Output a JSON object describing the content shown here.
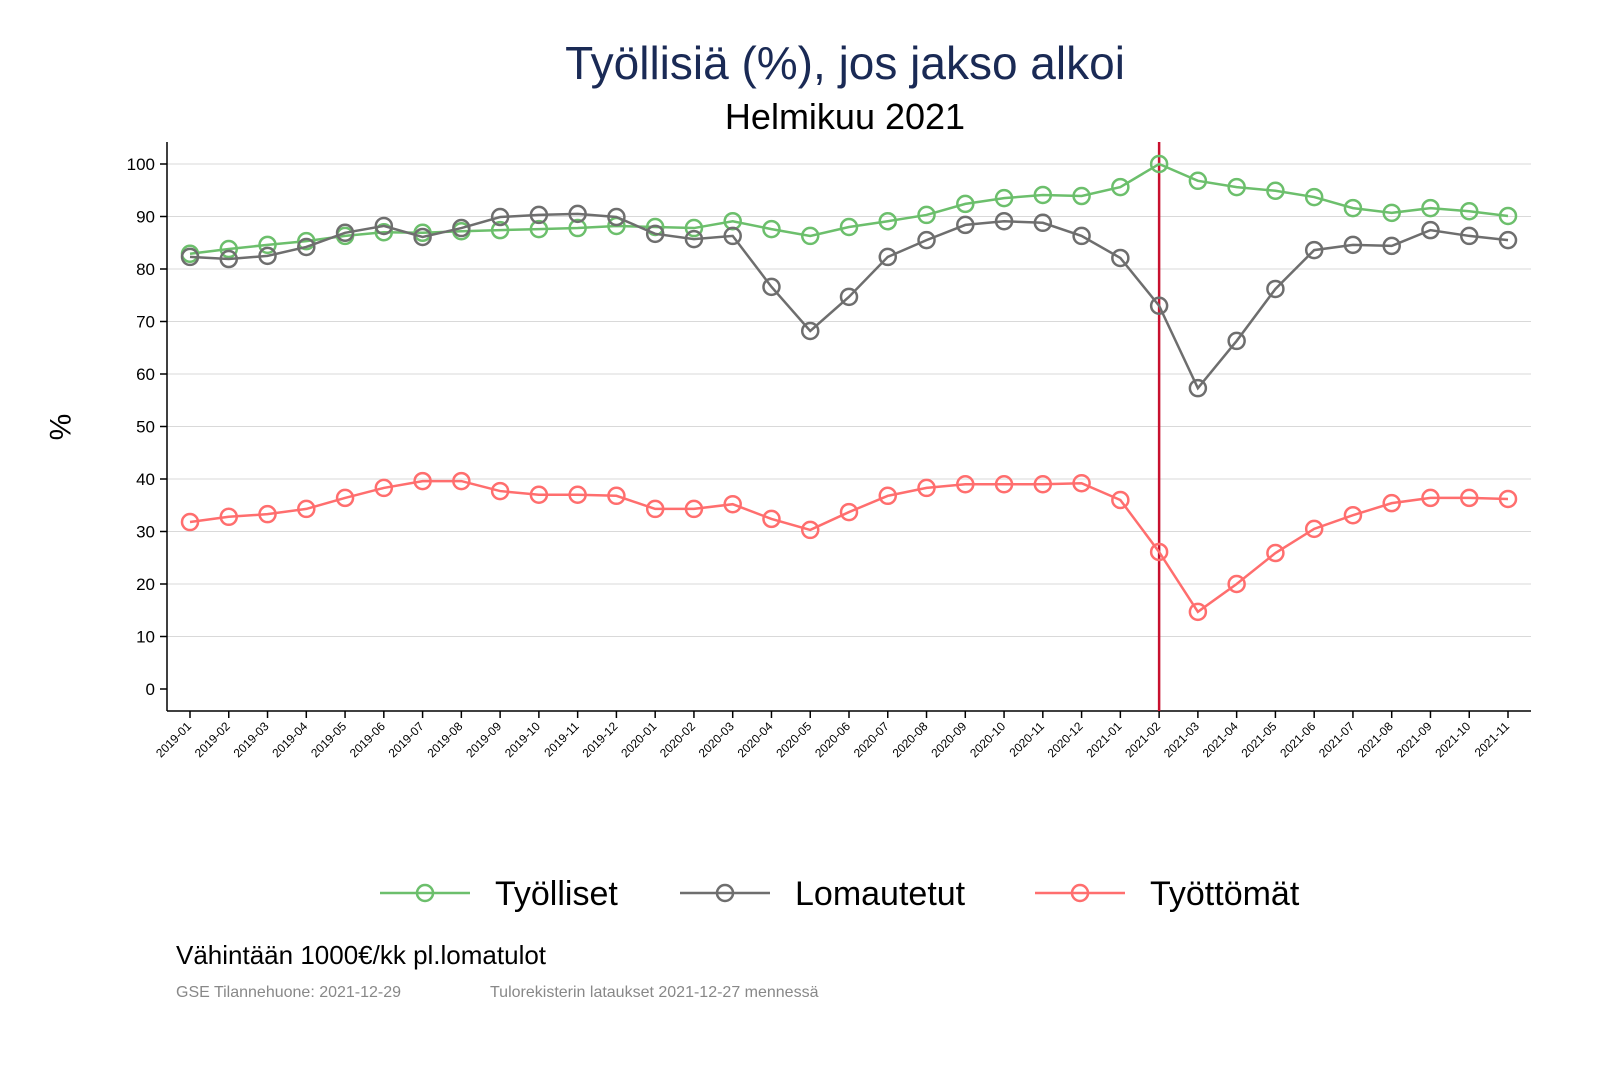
{
  "chart_data": {
    "type": "line",
    "title": "Työllisiä (%), jos jakso alkoi",
    "subtitle": "Helmikuu 2021",
    "ylabel": "%",
    "xlabel": "",
    "ylim": [
      -4,
      104
    ],
    "yticks": [
      0,
      10,
      20,
      30,
      40,
      50,
      60,
      70,
      80,
      90,
      100
    ],
    "grid": true,
    "legend_placement": "bottom",
    "vline": {
      "x": "2021-02",
      "color": "#c8102e"
    },
    "x": [
      "2019-01",
      "2019-02",
      "2019-03",
      "2019-04",
      "2019-05",
      "2019-06",
      "2019-07",
      "2019-08",
      "2019-09",
      "2019-10",
      "2019-11",
      "2019-12",
      "2020-01",
      "2020-02",
      "2020-03",
      "2020-04",
      "2020-05",
      "2020-06",
      "2020-07",
      "2020-08",
      "2020-09",
      "2020-10",
      "2020-11",
      "2020-12",
      "2021-01",
      "2021-02",
      "2021-03",
      "2021-04",
      "2021-05",
      "2021-06",
      "2021-07",
      "2021-08",
      "2021-09",
      "2021-10",
      "2021-11"
    ],
    "series": [
      {
        "name": "Työlliset",
        "color": "#6cbf6c",
        "values": [
          82.9,
          83.8,
          84.6,
          85.3,
          86.3,
          87.0,
          86.9,
          87.2,
          87.4,
          87.6,
          87.8,
          88.2,
          88.0,
          87.8,
          89.1,
          87.6,
          86.3,
          88.0,
          89.1,
          90.3,
          92.4,
          93.5,
          94.1,
          93.9,
          95.6,
          100.0,
          96.8,
          95.6,
          94.9,
          93.7,
          91.6,
          90.7,
          91.6,
          91.0,
          90.1
        ]
      },
      {
        "name": "Lomautetut",
        "color": "#6e6e6e",
        "values": [
          82.3,
          81.9,
          82.5,
          84.2,
          86.9,
          88.2,
          86.1,
          87.8,
          89.9,
          90.3,
          90.5,
          89.9,
          86.7,
          85.7,
          86.3,
          76.6,
          68.2,
          74.7,
          82.3,
          85.5,
          88.4,
          89.1,
          88.8,
          86.3,
          82.1,
          73.0,
          57.3,
          66.3,
          76.2,
          83.6,
          84.6,
          84.4,
          87.4,
          86.3,
          85.5
        ]
      },
      {
        "name": "Työttömät",
        "color": "#ff6e6e",
        "values": [
          31.8,
          32.8,
          33.3,
          34.3,
          36.4,
          38.3,
          39.6,
          39.6,
          37.7,
          37.0,
          37.0,
          36.8,
          34.3,
          34.3,
          35.2,
          32.4,
          30.3,
          33.7,
          36.8,
          38.3,
          39.0,
          39.0,
          39.0,
          39.2,
          36.0,
          26.1,
          14.7,
          20.0,
          25.9,
          30.5,
          33.1,
          35.4,
          36.4,
          36.4,
          36.2
        ]
      }
    ]
  },
  "note": "Vähintään 1000€/kk pl.lomatulot",
  "source_left": "GSE Tilannehuone: 2021-12-29",
  "source_right": "Tulorekisterin lataukset 2021-12-27 mennessä"
}
